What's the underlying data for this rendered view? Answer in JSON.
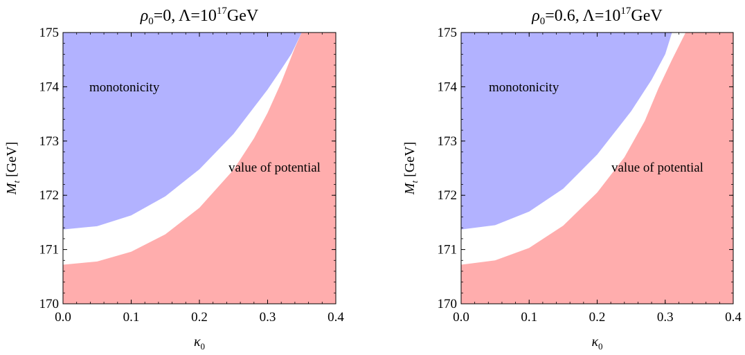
{
  "chart_data": [
    {
      "type": "area",
      "title": "ρ₀=0, Λ=10¹⁷GeV",
      "title_parts": {
        "rho": "ρ",
        "rho_sub": "0",
        "rho_val": "=0, ",
        "lambda": "Λ=10",
        "exp": "17",
        "unit": "GeV"
      },
      "xlabel": "κ₀",
      "xlabel_parts": {
        "main": "κ",
        "sub": "0"
      },
      "ylabel": "M_t [GeV]",
      "ylabel_parts": {
        "main": "M",
        "sub": "t",
        "rest": " [GeV]"
      },
      "xlim": [
        0.0,
        0.4
      ],
      "ylim": [
        170,
        175
      ],
      "xticks": [
        "0.0",
        "0.1",
        "0.2",
        "0.3",
        "0.4"
      ],
      "yticks": [
        "170",
        "171",
        "172",
        "173",
        "174",
        "175"
      ],
      "regions": [
        {
          "name": "value of potential",
          "color": "#ff9f9f",
          "description_side": "below curve",
          "boundary": {
            "x": [
              0.0,
              0.05,
              0.1,
              0.15,
              0.2,
              0.25,
              0.28,
              0.3,
              0.32,
              0.34,
              0.35
            ],
            "y": [
              170.72,
              170.78,
              170.96,
              171.28,
              171.77,
              172.47,
              173.05,
              173.52,
              174.08,
              174.72,
              175.0
            ]
          }
        },
        {
          "name": "monotonicity",
          "color": "#9f9fff",
          "description_side": "above curve",
          "boundary": {
            "x": [
              0.0,
              0.05,
              0.1,
              0.15,
              0.2,
              0.25,
              0.3,
              0.32,
              0.335,
              0.35
            ],
            "y": [
              171.37,
              171.43,
              171.63,
              171.98,
              172.48,
              173.13,
              173.95,
              174.32,
              174.61,
              175.0
            ]
          }
        }
      ],
      "annotations": [
        "monotonicity",
        "value of potential"
      ]
    },
    {
      "type": "area",
      "title": "ρ₀=0.6, Λ=10¹⁷GeV",
      "title_parts": {
        "rho": "ρ",
        "rho_sub": "0",
        "rho_val": "=0.6, ",
        "lambda": "Λ=10",
        "exp": "17",
        "unit": "GeV"
      },
      "xlabel": "κ₀",
      "xlabel_parts": {
        "main": "κ",
        "sub": "0"
      },
      "ylabel": "M_t [GeV]",
      "ylabel_parts": {
        "main": "M",
        "sub": "t",
        "rest": " [GeV]"
      },
      "xlim": [
        0.0,
        0.4
      ],
      "ylim": [
        170,
        175
      ],
      "xticks": [
        "0.0",
        "0.1",
        "0.2",
        "0.3",
        "0.4"
      ],
      "yticks": [
        "170",
        "171",
        "172",
        "173",
        "174",
        "175"
      ],
      "regions": [
        {
          "name": "value of potential",
          "color": "#ff9f9f",
          "description_side": "below curve",
          "boundary": {
            "x": [
              0.0,
              0.05,
              0.1,
              0.15,
              0.2,
              0.24,
              0.27,
              0.29,
              0.31,
              0.33
            ],
            "y": [
              170.72,
              170.8,
              171.03,
              171.44,
              172.05,
              172.7,
              173.37,
              173.97,
              174.5,
              175.0
            ]
          }
        },
        {
          "name": "monotonicity",
          "color": "#9f9fff",
          "description_side": "above curve",
          "boundary": {
            "x": [
              0.0,
              0.05,
              0.1,
              0.15,
              0.2,
              0.25,
              0.28,
              0.3,
              0.31
            ],
            "y": [
              171.37,
              171.45,
              171.7,
              172.12,
              172.75,
              173.55,
              174.13,
              174.6,
              175.0
            ]
          }
        }
      ],
      "annotations": [
        "monotonicity",
        "value of potential"
      ]
    }
  ]
}
